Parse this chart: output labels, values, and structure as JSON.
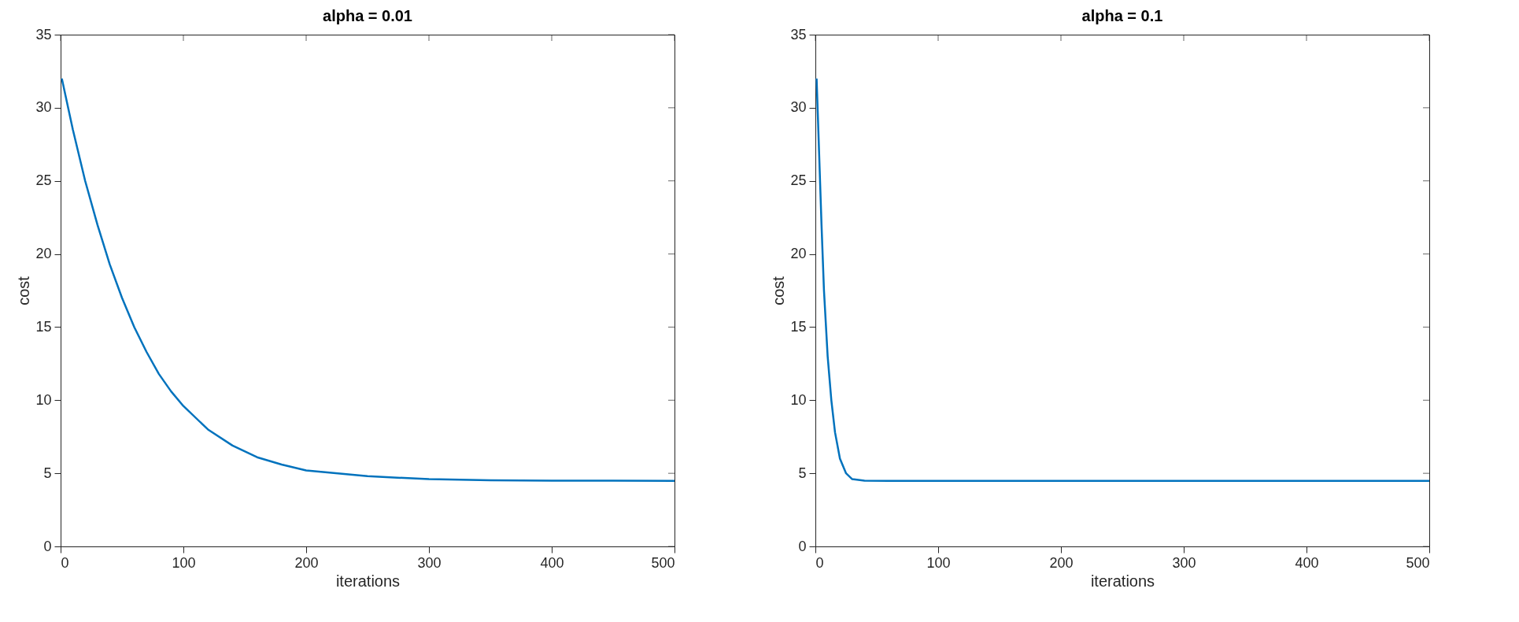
{
  "chart_data": [
    {
      "type": "line",
      "title": "alpha = 0.01",
      "xlabel": "iterations",
      "ylabel": "cost",
      "xlim": [
        0,
        500
      ],
      "xticks": [
        0,
        100,
        200,
        300,
        400,
        500
      ],
      "ylim": [
        0,
        35
      ],
      "yticks": [
        0,
        5,
        10,
        15,
        20,
        25,
        30,
        35
      ],
      "grid": false,
      "series": [
        {
          "color": "#0072bd",
          "x": [
            1,
            10,
            20,
            30,
            40,
            50,
            60,
            70,
            80,
            90,
            100,
            120,
            140,
            160,
            180,
            200,
            250,
            300,
            350,
            400,
            450,
            500
          ],
          "values": [
            32,
            28.5,
            25.0,
            22.0,
            19.3,
            17.0,
            15.0,
            13.3,
            11.8,
            10.6,
            9.6,
            8.0,
            6.9,
            6.1,
            5.6,
            5.2,
            4.8,
            4.6,
            4.52,
            4.5,
            4.49,
            4.48
          ]
        }
      ]
    },
    {
      "type": "line",
      "title": "alpha = 0.1",
      "xlabel": "iterations",
      "ylabel": "cost",
      "xlim": [
        0,
        500
      ],
      "xticks": [
        0,
        100,
        200,
        300,
        400,
        500
      ],
      "ylim": [
        0,
        35
      ],
      "yticks": [
        0,
        5,
        10,
        15,
        20,
        25,
        30,
        35
      ],
      "grid": false,
      "series": [
        {
          "color": "#0072bd",
          "x": [
            1,
            3,
            5,
            7,
            10,
            13,
            16,
            20,
            25,
            30,
            40,
            60,
            100,
            200,
            300,
            400,
            500
          ],
          "values": [
            32,
            27,
            22,
            17.5,
            13,
            10,
            7.8,
            6.0,
            5.0,
            4.6,
            4.5,
            4.48,
            4.48,
            4.48,
            4.48,
            4.48,
            4.48
          ]
        }
      ]
    }
  ]
}
